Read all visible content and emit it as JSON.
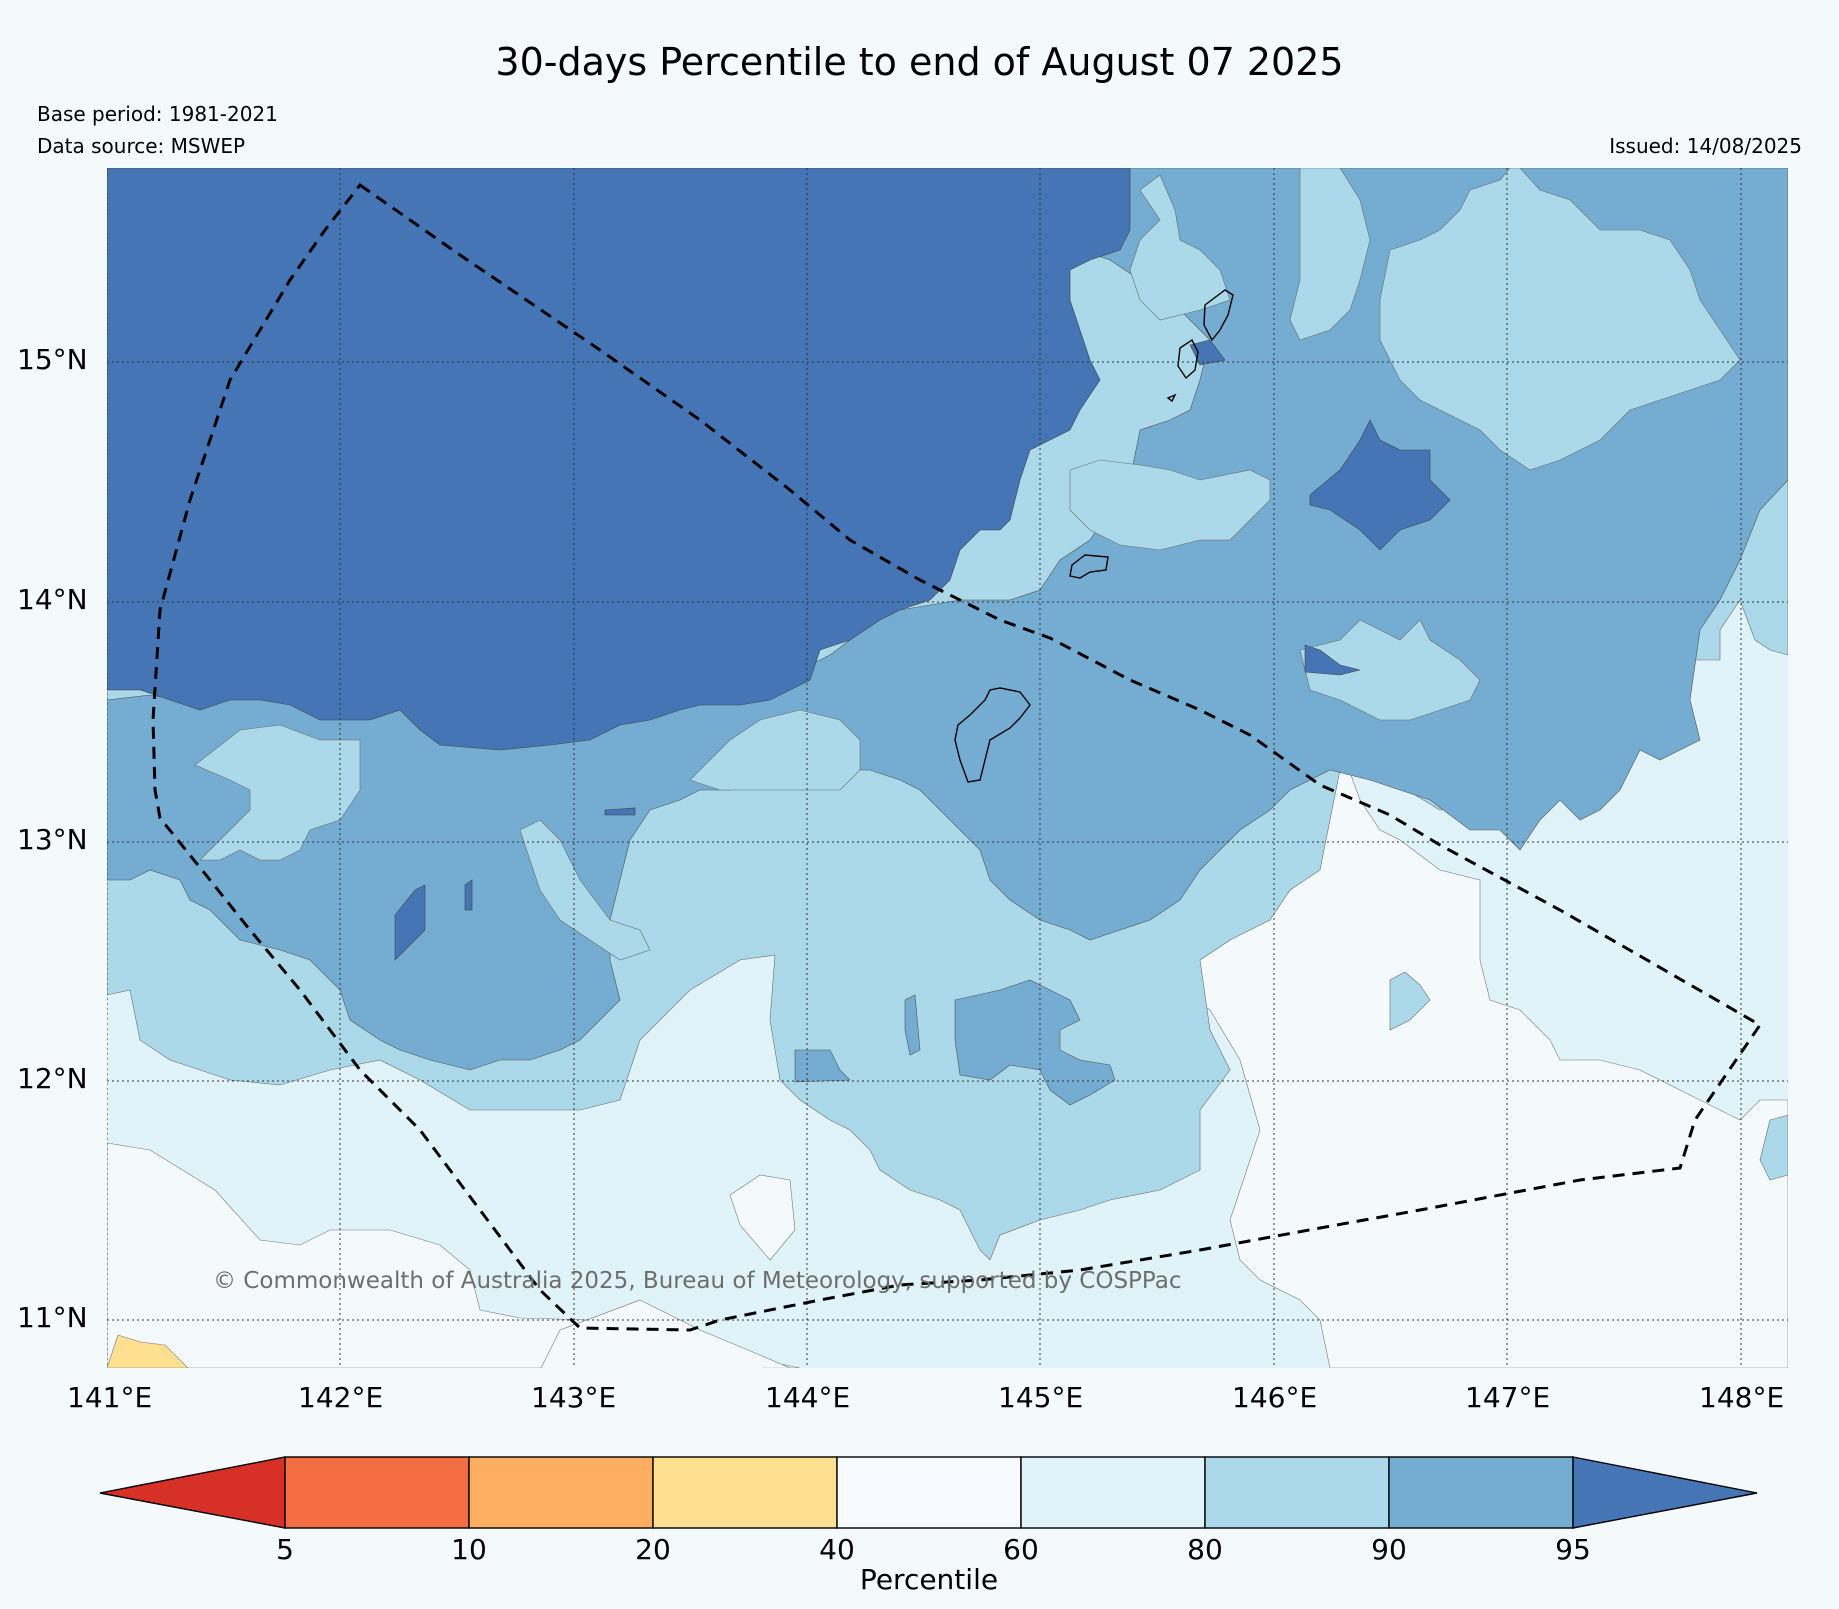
{
  "header": {
    "title": "30-days Percentile to end of August 07 2025",
    "base_period": "Base period: 1981-2021",
    "data_source": "Data source: MSWEP",
    "issued": "Issued: 14/08/2025"
  },
  "map": {
    "lon_range": [
      141.0,
      148.2
    ],
    "lat_range": [
      10.8,
      15.8
    ],
    "lon_ticks": [
      "141°E",
      "142°E",
      "143°E",
      "144°E",
      "145°E",
      "146°E",
      "147°E",
      "148°E"
    ],
    "lat_ticks": [
      "15°N",
      "14°N",
      "13°N",
      "12°N",
      "11°N"
    ],
    "grid": true,
    "copyright": "© Commonwealth of Australia 2025, Bureau of Meteorology, supported by COSPPac",
    "colors": {
      "above_95": "#4575b4",
      "p90_95": "#74add1",
      "p80_90": "#abd9e9",
      "p60_80": "#e0f3f8",
      "p40_60": "#f4f9fc",
      "p20_40": "#fee090",
      "p10_20": "#fdae61",
      "p5_10": "#f46d43",
      "below_5": "#d73027"
    }
  },
  "colorbar": {
    "title": "Percentile",
    "tick_labels": [
      "5",
      "10",
      "20",
      "40",
      "60",
      "80",
      "90",
      "95"
    ],
    "colors": [
      "#d73027",
      "#f46d43",
      "#fdae61",
      "#fee090",
      "#f7fbff",
      "#e0f3f8",
      "#abd9e9",
      "#74add1",
      "#4575b4"
    ]
  }
}
